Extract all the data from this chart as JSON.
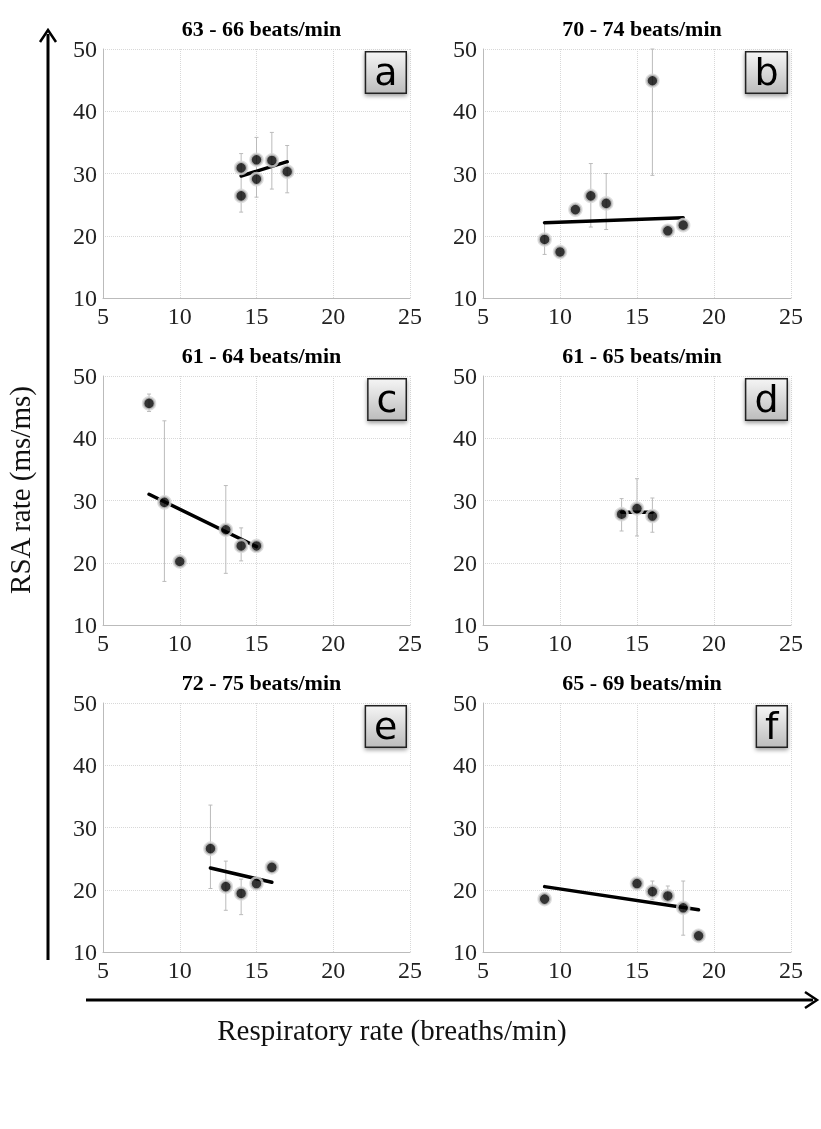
{
  "chart_data": [
    {
      "type": "scatter",
      "title": "63 - 66 beats/min",
      "annotations": [
        "a"
      ],
      "xlim": [
        5,
        25
      ],
      "xticks": [
        5,
        10,
        15,
        20,
        25
      ],
      "ylim": [
        10,
        50
      ],
      "yticks": [
        10,
        20,
        30,
        40,
        50
      ],
      "grid": true,
      "series": [
        {
          "marker": "circle",
          "color": "#000000",
          "x": [
            14,
            14,
            15,
            15,
            16,
            17
          ],
          "values": [
            30.9,
            26.4,
            32.2,
            29.1,
            32.1,
            30.3
          ],
          "errors": [
            [
              23.8,
              33.2
            ],
            null,
            [
              26.2,
              35.8
            ],
            null,
            [
              27.5,
              36.6
            ],
            [
              26.9,
              34.5
            ]
          ]
        },
        {
          "type": "line",
          "marker": "none",
          "color": "#000000",
          "x": [
            14,
            17
          ],
          "values": [
            29.6,
            31.9
          ]
        }
      ]
    },
    {
      "type": "scatter",
      "title": "70 - 74 beats/min",
      "annotations": [
        "b"
      ],
      "xlim": [
        5,
        25
      ],
      "xticks": [
        5,
        10,
        15,
        20,
        25
      ],
      "ylim": [
        10,
        50
      ],
      "yticks": [
        10,
        20,
        30,
        40,
        50
      ],
      "grid": true,
      "series": [
        {
          "marker": "circle",
          "color": "#000000",
          "x": [
            9,
            10,
            11,
            12,
            13,
            16,
            17,
            18
          ],
          "values": [
            19.4,
            17.4,
            24.2,
            26.4,
            25.2,
            44.9,
            20.8,
            21.7
          ],
          "errors": [
            [
              17.0,
              22.1
            ],
            null,
            null,
            [
              21.4,
              31.6
            ],
            [
              21.0,
              30.0
            ],
            [
              29.7,
              50
            ],
            null,
            null
          ]
        },
        {
          "type": "line",
          "marker": "none",
          "color": "#000000",
          "x": [
            9,
            18
          ],
          "values": [
            22.1,
            22.9
          ]
        }
      ]
    },
    {
      "type": "scatter",
      "title": "61 - 64 beats/min",
      "ylabel": "RSA rate (ms/ms)",
      "annotations": [
        "c"
      ],
      "xlim": [
        5,
        25
      ],
      "xticks": [
        5,
        10,
        15,
        20,
        25
      ],
      "ylim": [
        10,
        50
      ],
      "yticks": [
        10,
        20,
        30,
        40,
        50
      ],
      "grid": true,
      "series": [
        {
          "marker": "circle",
          "color": "#000000",
          "x": [
            8,
            9,
            10,
            13,
            14,
            15
          ],
          "values": [
            45.6,
            29.7,
            20.2,
            25.3,
            22.7,
            22.7
          ],
          "errors": [
            [
              44.3,
              47.1
            ],
            [
              17.0,
              42.8
            ],
            null,
            [
              18.3,
              32.4
            ],
            [
              20.3,
              25.6
            ],
            null
          ]
        },
        {
          "type": "line",
          "marker": "none",
          "color": "#000000",
          "x": [
            8,
            15
          ],
          "values": [
            31.0,
            22.6
          ]
        }
      ]
    },
    {
      "type": "scatter",
      "title": "61 - 65 beats/min",
      "annotations": [
        "d"
      ],
      "xlim": [
        5,
        25
      ],
      "xticks": [
        5,
        10,
        15,
        20,
        25
      ],
      "ylim": [
        10,
        50
      ],
      "yticks": [
        10,
        20,
        30,
        40,
        50
      ],
      "grid": true,
      "series": [
        {
          "marker": "circle",
          "color": "#000000",
          "x": [
            14,
            15,
            16
          ],
          "values": [
            27.8,
            28.7,
            27.5
          ],
          "errors": [
            [
              25.1,
              30.3
            ],
            [
              24.3,
              33.5
            ],
            [
              24.9,
              30.4
            ]
          ]
        },
        {
          "type": "line",
          "marker": "none",
          "color": "#000000",
          "x": [
            14,
            16
          ],
          "values": [
            28.1,
            28.1
          ]
        }
      ]
    },
    {
      "type": "scatter",
      "title": "72 - 75 beats/min",
      "xlabel": "Respiratory rate (breaths/min)",
      "annotations": [
        "e"
      ],
      "xlim": [
        5,
        25
      ],
      "xticks": [
        5,
        10,
        15,
        20,
        25
      ],
      "ylim": [
        10,
        50
      ],
      "yticks": [
        10,
        20,
        30,
        40,
        50
      ],
      "grid": true,
      "series": [
        {
          "marker": "circle",
          "color": "#000000",
          "x": [
            12,
            13,
            14,
            15,
            16
          ],
          "values": [
            26.6,
            20.5,
            19.4,
            21.0,
            23.6
          ],
          "errors": [
            [
              20.2,
              33.6
            ],
            [
              16.7,
              24.6
            ],
            [
              16.0,
              21.7
            ],
            null,
            null
          ]
        },
        {
          "type": "line",
          "marker": "none",
          "color": "#000000",
          "x": [
            12,
            16
          ],
          "values": [
            23.5,
            21.2
          ]
        }
      ]
    },
    {
      "type": "scatter",
      "title": "65 - 69 beats/min",
      "annotations": [
        "f"
      ],
      "xlim": [
        5,
        25
      ],
      "xticks": [
        5,
        10,
        15,
        20,
        25
      ],
      "ylim": [
        10,
        50
      ],
      "yticks": [
        10,
        20,
        30,
        40,
        50
      ],
      "grid": true,
      "series": [
        {
          "marker": "circle",
          "color": "#000000",
          "x": [
            9,
            15,
            16,
            17,
            18,
            19
          ],
          "values": [
            18.5,
            21.0,
            19.7,
            19.0,
            17.1,
            12.6
          ],
          "errors": [
            null,
            null,
            [
              18.4,
              21.4
            ],
            [
              17.5,
              20.6
            ],
            [
              12.7,
              21.4
            ],
            null
          ]
        },
        {
          "type": "line",
          "marker": "none",
          "color": "#000000",
          "x": [
            9,
            19
          ],
          "values": [
            20.5,
            16.8
          ]
        }
      ]
    }
  ]
}
